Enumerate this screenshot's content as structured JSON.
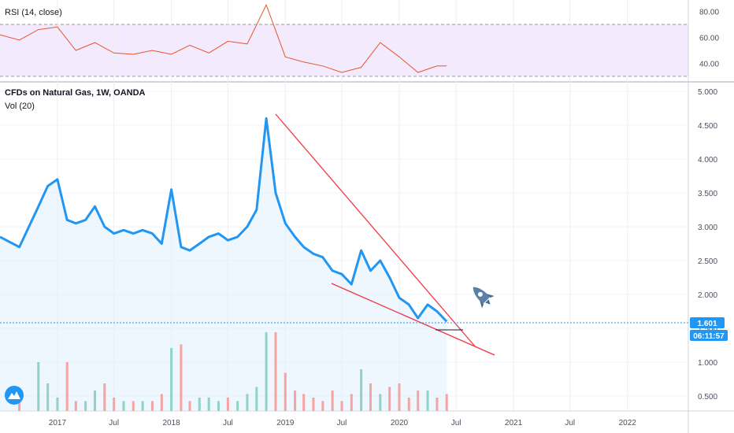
{
  "rsi_pane": {
    "title": "RSI (14, close)",
    "ticks": [
      "80.00",
      "60.00",
      "40.00"
    ]
  },
  "price_pane": {
    "title": "CFDs on Natural Gas, 1W, OANDA",
    "subtitle": "Vol (20)",
    "ticks": [
      "5.000",
      "4.500",
      "4.000",
      "3.500",
      "3.000",
      "2.500",
      "2.000",
      "1.500",
      "1.000",
      "0.500"
    ],
    "last_price": "1.601",
    "countdown": "06:11:57"
  },
  "x_axis": {
    "labels": [
      "2017",
      "Jul",
      "2018",
      "Jul",
      "2019",
      "Jul",
      "2020",
      "Jul",
      "2021",
      "Jul",
      "2022"
    ]
  },
  "colors": {
    "price_line": "#2196f3",
    "trendline": "#f23645",
    "rsi_line": "#e4572e",
    "rsi_band": "#e9d8fb",
    "volume_up": "#8fd3c7",
    "volume_down": "#f5a3a3",
    "price_tag_bg": "#2196f3"
  },
  "icons": [
    "rocket-icon",
    "tradingview-logo-icon"
  ],
  "chart_data": [
    {
      "type": "line",
      "title": "RSI (14, close)",
      "ylim": [
        25,
        88
      ],
      "bands": [
        30,
        70
      ],
      "x": [
        "2016-07",
        "2016-09",
        "2016-11",
        "2017-01",
        "2017-03",
        "2017-05",
        "2017-07",
        "2017-09",
        "2017-11",
        "2018-01",
        "2018-03",
        "2018-05",
        "2018-07",
        "2018-09",
        "2018-11",
        "2019-01",
        "2019-03",
        "2019-05",
        "2019-07",
        "2019-09",
        "2019-11",
        "2020-01",
        "2020-03",
        "2020-05",
        "2020-06"
      ],
      "values": [
        62,
        58,
        66,
        68,
        50,
        56,
        48,
        47,
        50,
        47,
        54,
        48,
        57,
        55,
        85,
        45,
        41,
        38,
        33,
        37,
        56,
        45,
        33,
        38,
        38
      ]
    },
    {
      "type": "line",
      "title": "CFDs on Natural Gas, 1W, OANDA",
      "ylim": [
        0.3,
        5.1
      ],
      "last_value": 1.601,
      "series": [
        {
          "x": [
            "2016-07",
            "2016-09",
            "2016-11",
            "2016-12",
            "2017-01",
            "2017-02",
            "2017-03",
            "2017-04",
            "2017-05",
            "2017-06",
            "2017-07",
            "2017-08",
            "2017-09",
            "2017-10",
            "2017-11",
            "2017-12",
            "2018-01",
            "2018-02",
            "2018-03",
            "2018-04",
            "2018-05",
            "2018-06",
            "2018-07",
            "2018-08",
            "2018-09",
            "2018-10",
            "2018-11",
            "2018-12",
            "2019-01",
            "2019-02",
            "2019-03",
            "2019-04",
            "2019-05",
            "2019-06",
            "2019-07",
            "2019-08",
            "2019-09",
            "2019-10",
            "2019-11",
            "2019-12",
            "2020-01",
            "2020-02",
            "2020-03",
            "2020-04",
            "2020-05",
            "2020-06"
          ],
          "values": [
            2.85,
            2.7,
            3.3,
            3.6,
            3.7,
            3.1,
            3.05,
            3.1,
            3.3,
            3.0,
            2.9,
            2.95,
            2.9,
            2.95,
            2.9,
            2.75,
            3.55,
            2.7,
            2.65,
            2.75,
            2.85,
            2.9,
            2.8,
            2.85,
            3.0,
            3.25,
            4.6,
            3.5,
            3.05,
            2.85,
            2.7,
            2.6,
            2.55,
            2.35,
            2.3,
            2.15,
            2.65,
            2.35,
            2.5,
            2.25,
            1.95,
            1.85,
            1.65,
            1.85,
            1.75,
            1.6
          ]
        }
      ]
    }
  ]
}
